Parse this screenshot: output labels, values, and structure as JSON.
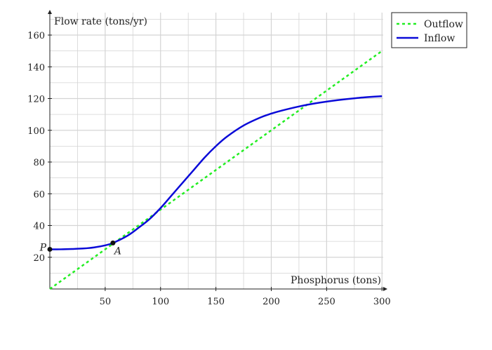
{
  "chart_data": {
    "type": "line",
    "xlabel": "Phosphorus (tons)",
    "ylabel": "Flow rate (tons/yr)",
    "xlim": [
      0,
      300
    ],
    "ylim": [
      0,
      175
    ],
    "x_ticks": [
      50,
      100,
      150,
      200,
      250,
      300
    ],
    "y_ticks": [
      20,
      40,
      60,
      80,
      100,
      120,
      140,
      160
    ],
    "grid": true,
    "legend_position": "top-right",
    "series": [
      {
        "name": "Outflow",
        "style": "dashed",
        "color": "#22ee22",
        "x": [
          0,
          300
        ],
        "y": [
          0,
          150
        ]
      },
      {
        "name": "Inflow",
        "style": "solid",
        "color": "#0a0ad8",
        "x": [
          0,
          10,
          20,
          30,
          40,
          50,
          57,
          70,
          80,
          90,
          100,
          110,
          120,
          130,
          140,
          150,
          160,
          175,
          190,
          200,
          210,
          225,
          240,
          260,
          280,
          300
        ],
        "y": [
          25,
          25,
          25.2,
          25.5,
          26.2,
          27.5,
          29,
          33.5,
          38.5,
          44,
          51,
          59,
          67,
          75,
          83,
          90,
          96,
          103,
          108,
          110.5,
          112.5,
          115,
          117,
          119,
          120.5,
          121.5
        ]
      }
    ],
    "points": [
      {
        "label": "P",
        "x": 0,
        "y": 25
      },
      {
        "label": "A",
        "x": 57,
        "y": 29
      }
    ]
  }
}
